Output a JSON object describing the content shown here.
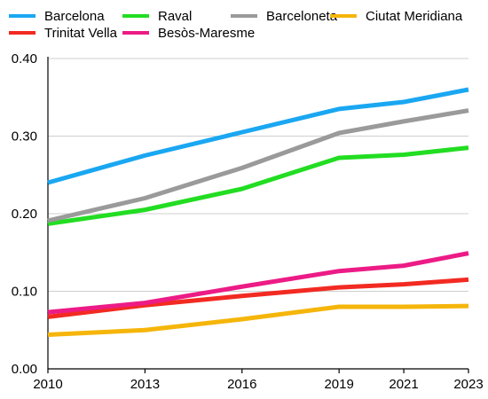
{
  "chart_data": {
    "type": "line",
    "title": "",
    "xlabel": "",
    "ylabel": "",
    "x": [
      "2010",
      "2013",
      "2016",
      "2019",
      "2021",
      "2023"
    ],
    "x_values": [
      2010,
      2013,
      2016,
      2019,
      2021,
      2023
    ],
    "ylim": [
      0,
      0.4
    ],
    "y_ticks": [
      "0.00",
      "0.10",
      "0.20",
      "0.30",
      "0.40"
    ],
    "y_tick_values": [
      0,
      0.1,
      0.2,
      0.3,
      0.4
    ],
    "grid": true,
    "legend_position": "top",
    "series": [
      {
        "name": "Barcelona",
        "color": "#1aa7f2",
        "values": [
          0.24,
          0.275,
          0.305,
          0.335,
          0.344,
          0.36
        ]
      },
      {
        "name": "Trinitat Vella",
        "color": "#f22a22",
        "values": [
          0.067,
          0.082,
          0.094,
          0.105,
          0.109,
          0.115
        ]
      },
      {
        "name": "Raval",
        "color": "#22dd22",
        "values": [
          0.187,
          0.205,
          0.232,
          0.272,
          0.276,
          0.285
        ]
      },
      {
        "name": "Besòs-Maresme",
        "color": "#ec1b86",
        "values": [
          0.073,
          0.085,
          0.106,
          0.126,
          0.133,
          0.149
        ]
      },
      {
        "name": "Barceloneta",
        "color": "#9a9a9a",
        "values": [
          0.191,
          0.22,
          0.259,
          0.304,
          0.319,
          0.333
        ]
      },
      {
        "name": "Ciutat Meridiana",
        "color": "#f5b50a",
        "values": [
          0.044,
          0.05,
          0.064,
          0.08,
          0.08,
          0.081
        ]
      }
    ]
  }
}
